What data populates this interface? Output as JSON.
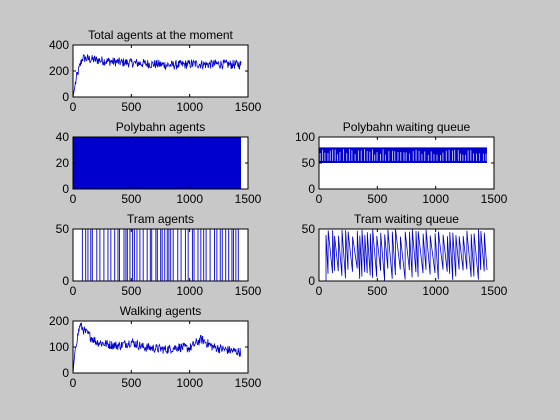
{
  "window": {
    "background": "#c8c8c8",
    "axes_background": "#ffffff",
    "line_color": "#0000cc"
  },
  "chart_data": [
    {
      "id": "total",
      "type": "line",
      "title": "Total agents at the moment",
      "xlim": [
        0,
        1500
      ],
      "ylim": [
        0,
        400
      ],
      "xticks": [
        0,
        500,
        1000,
        1500
      ],
      "yticks": [
        0,
        200,
        400
      ],
      "series": [
        {
          "pattern": "noisy-rise",
          "x": [
            0,
            30,
            80,
            150,
            250,
            350,
            450,
            550,
            650,
            750,
            850,
            950,
            1050,
            1150,
            1250,
            1350,
            1440
          ],
          "y": [
            0,
            150,
            300,
            290,
            280,
            270,
            265,
            260,
            255,
            250,
            245,
            250,
            255,
            250,
            255,
            250,
            250
          ]
        }
      ]
    },
    {
      "id": "poly-agents",
      "type": "area",
      "title": "Polybahn agents",
      "xlim": [
        0,
        1500
      ],
      "ylim": [
        0,
        40
      ],
      "xticks": [
        0,
        500,
        1000,
        1500
      ],
      "yticks": [
        0,
        20,
        40
      ],
      "series": [
        {
          "pattern": "dense-fill",
          "x": [
            0,
            1440
          ],
          "y": [
            40,
            40
          ]
        }
      ]
    },
    {
      "id": "poly-queue",
      "type": "line",
      "title": "Polybahn waiting queue",
      "xlim": [
        0,
        1500
      ],
      "ylim": [
        0,
        100
      ],
      "xticks": [
        0,
        500,
        1000,
        1500
      ],
      "yticks": [
        0,
        50,
        100
      ],
      "series": [
        {
          "pattern": "dense-band",
          "x": [
            0,
            1440
          ],
          "y": [
            50,
            80
          ]
        }
      ]
    },
    {
      "id": "tram-agents",
      "type": "line",
      "title": "Tram agents",
      "xlim": [
        0,
        1500
      ],
      "ylim": [
        0,
        50
      ],
      "xticks": [
        0,
        500,
        1000,
        1500
      ],
      "yticks": [
        0,
        50
      ],
      "series": [
        {
          "pattern": "spikes",
          "x": [
            0,
            1440
          ],
          "y": [
            0,
            50
          ]
        }
      ]
    },
    {
      "id": "tram-queue",
      "type": "line",
      "title": "Tram waiting queue",
      "xlim": [
        0,
        1500
      ],
      "ylim": [
        0,
        50
      ],
      "xticks": [
        0,
        500,
        1000,
        1500
      ],
      "yticks": [
        0,
        50
      ],
      "series": [
        {
          "pattern": "sawtooth",
          "x": [
            0,
            1440
          ],
          "y": [
            0,
            50
          ]
        }
      ]
    },
    {
      "id": "walking",
      "type": "line",
      "title": "Walking agents",
      "xlim": [
        0,
        1500
      ],
      "ylim": [
        0,
        200
      ],
      "xticks": [
        0,
        500,
        1000,
        1500
      ],
      "yticks": [
        0,
        100,
        200
      ],
      "series": [
        {
          "pattern": "noisy-rise",
          "x": [
            0,
            20,
            60,
            100,
            200,
            300,
            400,
            500,
            600,
            700,
            800,
            900,
            1000,
            1100,
            1200,
            1300,
            1440
          ],
          "y": [
            0,
            100,
            185,
            160,
            120,
            110,
            105,
            120,
            100,
            95,
            90,
            100,
            95,
            130,
            100,
            90,
            80
          ]
        }
      ]
    }
  ]
}
